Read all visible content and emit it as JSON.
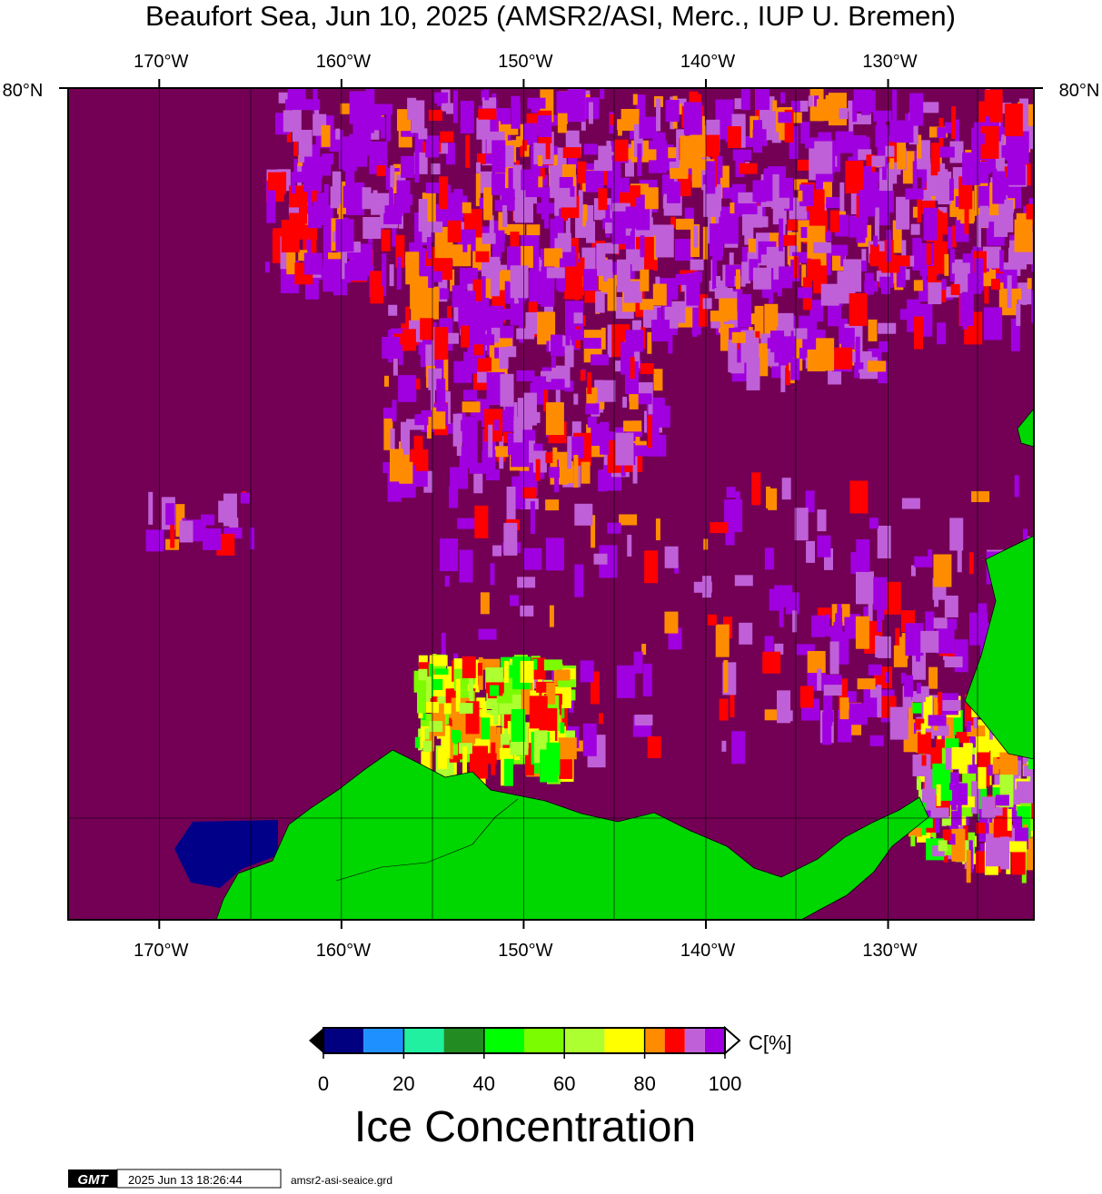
{
  "map": {
    "title": "Beaufort Sea, Jun 10, 2025 (AMSR2/ASI, Merc., IUP U. Bremen)",
    "xlim": [
      -175,
      -122
    ],
    "lon_ticks": [
      {
        "value": -170,
        "label": "170°W"
      },
      {
        "value": -160,
        "label": "160°W"
      },
      {
        "value": -150,
        "label": "150°W"
      },
      {
        "value": -140,
        "label": "140°W"
      },
      {
        "value": -130,
        "label": "130°W"
      }
    ],
    "lat_label": "80°N"
  },
  "colorbar": {
    "bins": [
      0,
      10,
      20,
      30,
      40,
      50,
      60,
      70,
      80,
      85,
      90,
      95,
      100
    ],
    "colors": [
      "#000080",
      "#1e90ff",
      "#20f0a0",
      "#228b22",
      "#00ff00",
      "#7cfc00",
      "#adff2f",
      "#ffff00",
      "#ff8c00",
      "#ff0000",
      "#c060d8",
      "#a000e0"
    ],
    "ticks": [
      0,
      20,
      40,
      60,
      80,
      100
    ],
    "unit": "C[%]",
    "label": "Ice Concentration"
  },
  "footer": {
    "logo": "GMT",
    "timestamp": "2025 Jun 13 18:26:44",
    "file": "amsr2-asi-seaice.grd"
  }
}
